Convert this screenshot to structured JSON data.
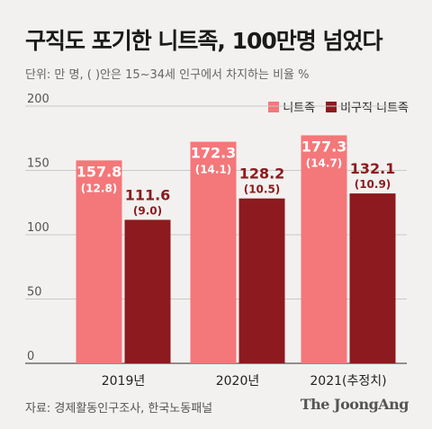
{
  "header": {
    "title": "구직도 포기한 니트족, 100만명 넘었다",
    "subtitle": "단위: 만 명, ( )안은 15~34세 인구에서 차지하는 비율 %"
  },
  "legend": [
    {
      "label": "니트족",
      "color": "#f4777a"
    },
    {
      "label": "비구직 니트족",
      "color": "#8c1a1e"
    }
  ],
  "chart_data": {
    "type": "bar",
    "categories": [
      "2019년",
      "2020년",
      "2021(추정치)"
    ],
    "series": [
      {
        "name": "니트족",
        "color": "#f4777a",
        "values": [
          157.8,
          172.3,
          177.3
        ],
        "shares": [
          "(12.8)",
          "(14.1)",
          "(14.7)"
        ]
      },
      {
        "name": "비구직 니트족",
        "color": "#8c1a1e",
        "values": [
          111.6,
          128.2,
          132.1
        ],
        "shares": [
          "(9.0)",
          "(10.5)",
          "(10.9)"
        ]
      }
    ],
    "ylim": [
      0,
      200
    ],
    "yticks": [
      0,
      50,
      100,
      150,
      200
    ],
    "grid": true,
    "legend_position": "top-right"
  },
  "footer": {
    "source": "자료: 경제활동인구조사, 한국노동패널",
    "logo": "The JoongAng"
  }
}
